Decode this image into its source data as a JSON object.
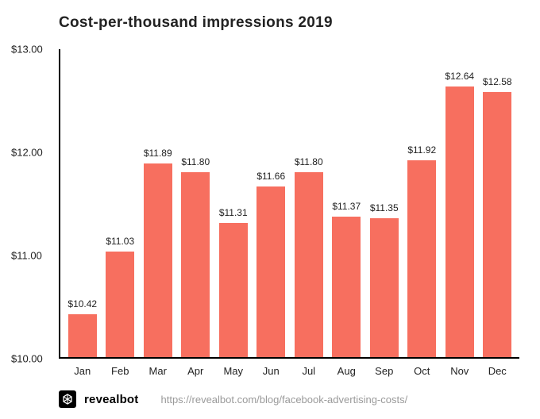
{
  "chart": {
    "type": "bar",
    "title": "Cost-per-thousand impressions 2019",
    "title_fontsize": 19,
    "background_color": "#ffffff",
    "bar_color": "#f76f5f",
    "axis_color": "#000000",
    "text_color": "#222222",
    "ylim": [
      10.0,
      13.0
    ],
    "ytick_step": 1.0,
    "yticks": [
      "$10.00",
      "$11.00",
      "$12.00",
      "$13.00"
    ],
    "bar_width": 0.76,
    "label_fontsize": 13,
    "value_fontsize": 12,
    "categories": [
      "Jan",
      "Feb",
      "Mar",
      "Apr",
      "May",
      "Jun",
      "Jul",
      "Aug",
      "Sep",
      "Oct",
      "Nov",
      "Dec"
    ],
    "values": [
      10.42,
      11.03,
      11.89,
      11.8,
      11.31,
      11.66,
      11.8,
      11.37,
      11.35,
      11.92,
      12.64,
      12.58
    ],
    "value_labels": [
      "$10.42",
      "$11.03",
      "$11.89",
      "$11.80",
      "$11.31",
      "$11.66",
      "$11.80",
      "$11.37",
      "$11.35",
      "$11.92",
      "$12.64",
      "$12.58"
    ]
  },
  "footer": {
    "brand": "revealbot",
    "source_url": "https://revealbot.com/blog/facebook-advertising-costs/",
    "source_color": "#9a9a9a",
    "logo_bg": "#000000",
    "logo_fg": "#ffffff"
  }
}
